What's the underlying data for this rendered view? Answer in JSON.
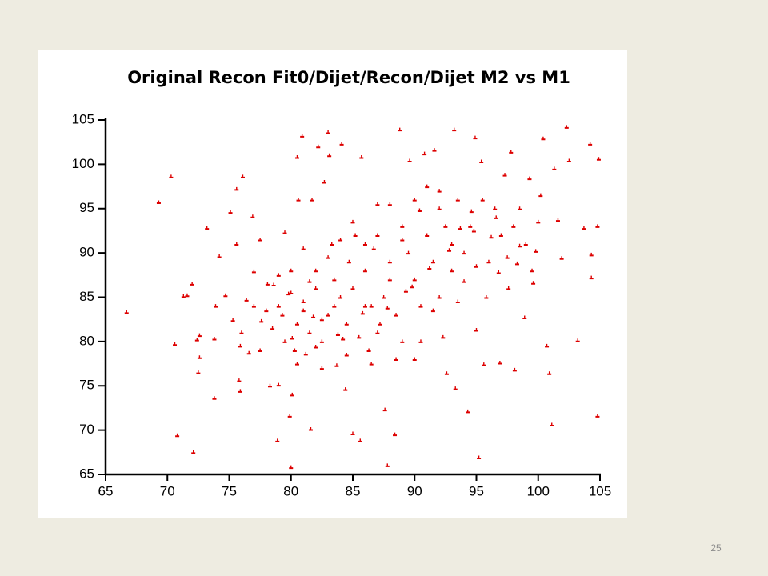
{
  "chart_data": {
    "type": "scatter",
    "title": "Original Recon Fit0/Dijet/Recon/Dijet M2 vs M1",
    "xlim": [
      65,
      105
    ],
    "ylim": [
      65,
      105
    ],
    "xticks": [
      65,
      70,
      75,
      80,
      85,
      90,
      95,
      100,
      105
    ],
    "yticks": [
      65,
      70,
      75,
      80,
      85,
      90,
      95,
      100,
      105
    ],
    "color": "#dd0000",
    "x": [
      66.7,
      69.3,
      70.3,
      70.6,
      70.8,
      71.3,
      71.6,
      72.0,
      72.1,
      72.4,
      72.5,
      72.6,
      72.6,
      73.2,
      73.8,
      73.8,
      73.9,
      74.2,
      74.7,
      75.1,
      75.3,
      75.6,
      75.6,
      75.8,
      75.9,
      75.9,
      76.1,
      76.4,
      76.6,
      76.9,
      77.0,
      77.5,
      77.6,
      78.1,
      78.3,
      78.6,
      78.9,
      79.0,
      79.3,
      79.5,
      79.8,
      79.9,
      80.1,
      80.1,
      80.0,
      80.3,
      80.5,
      80.6,
      80.9,
      81.0,
      81.2,
      81.5,
      81.6,
      81.7,
      82.0,
      82.2,
      82.5,
      82.7,
      83.0,
      83.1,
      83.3,
      83.5,
      83.7,
      84.1,
      84.2,
      84.4,
      84.7,
      85.0,
      85.2,
      85.6,
      85.7,
      86.0,
      86.3,
      86.7,
      87.0,
      87.2,
      87.6,
      87.8,
      88.0,
      88.4,
      88.8,
      89.0,
      89.3,
      89.6,
      90.0,
      90.4,
      90.8,
      91.2,
      91.6,
      92.0,
      92.3,
      92.6,
      93.0,
      93.2,
      93.3,
      93.7,
      94.0,
      94.3,
      94.6,
      94.9,
      95.0,
      95.2,
      95.4,
      95.6,
      95.8,
      96.2,
      96.6,
      96.9,
      97.3,
      97.6,
      97.8,
      98.1,
      98.5,
      98.9,
      99.3,
      99.6,
      100.2,
      100.4,
      100.7,
      100.9,
      101.1,
      101.3,
      101.6,
      101.9,
      102.3,
      102.5,
      103.2,
      103.7,
      104.2,
      104.3,
      104.3,
      104.8,
      104.9,
      104.8,
      78.5,
      79,
      79.5,
      80,
      80.5,
      81,
      81.5,
      82,
      82.5,
      83,
      83.5,
      84,
      84.5,
      85,
      85.5,
      86,
      86.5,
      87,
      87.5,
      88,
      88.5,
      89,
      89.5,
      90,
      90.5,
      91,
      91.5,
      92,
      92.5,
      93,
      93.5,
      94,
      94.5,
      95,
      95.5,
      96,
      96.5,
      97,
      97.5,
      98,
      98.5,
      99,
      99.5,
      100,
      90,
      91,
      92,
      89,
      88,
      87,
      86,
      85,
      84,
      83,
      82,
      81,
      80,
      79,
      78,
      77,
      76,
      77.5,
      80.5,
      82.5,
      84.5,
      86.5,
      88.5,
      90.5,
      91.5,
      93.5,
      83.8,
      81.8,
      85.8,
      87.8,
      89.8,
      92.8,
      94.8,
      96.8,
      98.3,
      99.8
    ],
    "values": [
      83.3,
      95.7,
      98.6,
      79.7,
      69.4,
      85.1,
      85.2,
      86.5,
      67.5,
      80.2,
      76.5,
      78.2,
      80.7,
      92.8,
      73.6,
      80.3,
      84.0,
      89.6,
      85.2,
      94.6,
      82.4,
      91.0,
      97.2,
      75.6,
      74.4,
      79.5,
      98.6,
      84.7,
      78.7,
      94.1,
      87.9,
      91.5,
      82.3,
      86.5,
      75.0,
      86.4,
      68.8,
      75.1,
      83.0,
      92.3,
      85.4,
      71.6,
      74.0,
      80.4,
      65.8,
      79.0,
      100.8,
      96.0,
      103.2,
      83.5,
      78.6,
      86.8,
      70.1,
      96.0,
      79.4,
      102.0,
      82.5,
      98.0,
      103.6,
      101.0,
      91.0,
      84.0,
      77.3,
      102.3,
      80.3,
      74.6,
      89.0,
      69.6,
      92.0,
      68.8,
      100.8,
      84.0,
      79.0,
      90.5,
      95.5,
      82.0,
      72.3,
      66.0,
      87.0,
      69.5,
      103.9,
      91.5,
      85.7,
      100.4,
      78.0,
      94.8,
      101.2,
      88.3,
      101.6,
      97.0,
      80.5,
      76.4,
      91.0,
      103.9,
      74.7,
      92.8,
      86.8,
      72.1,
      94.7,
      103.0,
      81.3,
      66.9,
      100.3,
      77.4,
      85.0,
      91.8,
      94.0,
      77.6,
      98.8,
      86.0,
      101.4,
      76.8,
      90.8,
      82.7,
      98.4,
      86.6,
      96.5,
      102.9,
      79.5,
      76.4,
      70.6,
      99.5,
      93.7,
      89.4,
      104.2,
      100.4,
      80.1,
      92.8,
      102.3,
      89.8,
      87.2,
      93.0,
      100.6,
      71.6,
      81.5,
      84,
      80,
      88,
      82,
      84.5,
      81,
      86,
      80,
      83,
      87,
      85,
      82,
      86,
      80.5,
      88,
      84,
      81,
      85,
      89,
      83,
      80,
      90,
      87,
      84,
      92,
      89,
      85,
      93,
      88,
      96,
      90,
      93,
      88.5,
      96,
      89,
      95,
      92,
      89.5,
      93,
      95,
      91,
      88,
      93.5,
      96,
      97.5,
      95,
      93,
      95.5,
      92,
      91,
      93.5,
      91.5,
      89.5,
      88,
      90.5,
      85.5,
      87.5,
      83.5,
      84,
      81,
      79,
      77.5,
      77,
      78.5,
      77.5,
      78,
      80,
      83.5,
      84.5,
      80.8,
      82.8,
      83.2,
      83.8,
      86.2,
      90.3,
      92.5,
      87.8,
      88.8,
      90.2
    ]
  },
  "page_number": "25"
}
